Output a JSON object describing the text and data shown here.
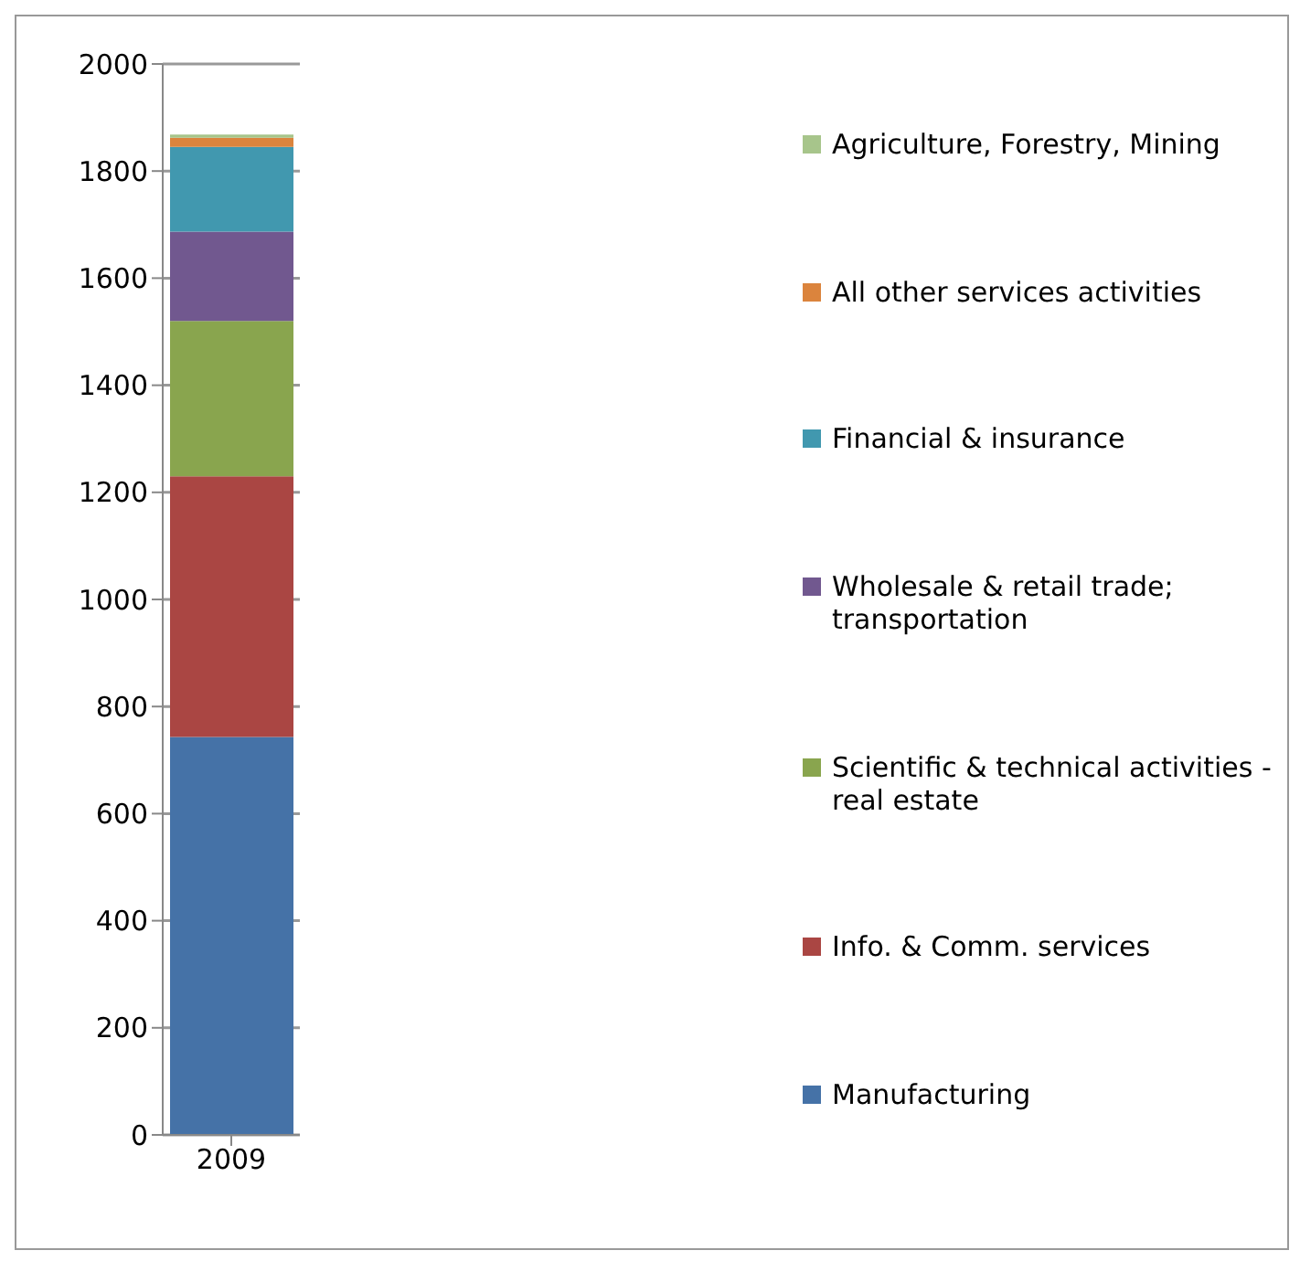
{
  "chart_data": {
    "type": "bar",
    "stacked": true,
    "categories": [
      "2009"
    ],
    "series": [
      {
        "name": "Manufacturing",
        "color": "#4572a7",
        "values": [
          743
        ]
      },
      {
        "name": "Info. & Comm. services",
        "color": "#aa4643",
        "values": [
          487
        ]
      },
      {
        "name": "Scientific & technical activities - real estate",
        "color": "#89a54e",
        "values": [
          290
        ]
      },
      {
        "name": "Wholesale & retail trade; transportation",
        "color": "#71588f",
        "values": [
          167
        ]
      },
      {
        "name": "Financial & insurance",
        "color": "#4198af",
        "values": [
          158
        ]
      },
      {
        "name": "All other services activities",
        "color": "#db843d",
        "values": [
          17
        ]
      },
      {
        "name": "Agriculture, Forestry, Mining",
        "color": "#a7c58b",
        "values": [
          6
        ]
      }
    ],
    "ylim": [
      0,
      2000
    ],
    "yticks": [
      0,
      200,
      400,
      600,
      800,
      1000,
      1200,
      1400,
      1600,
      1800,
      2000
    ],
    "grid": "y",
    "legend": "right"
  }
}
